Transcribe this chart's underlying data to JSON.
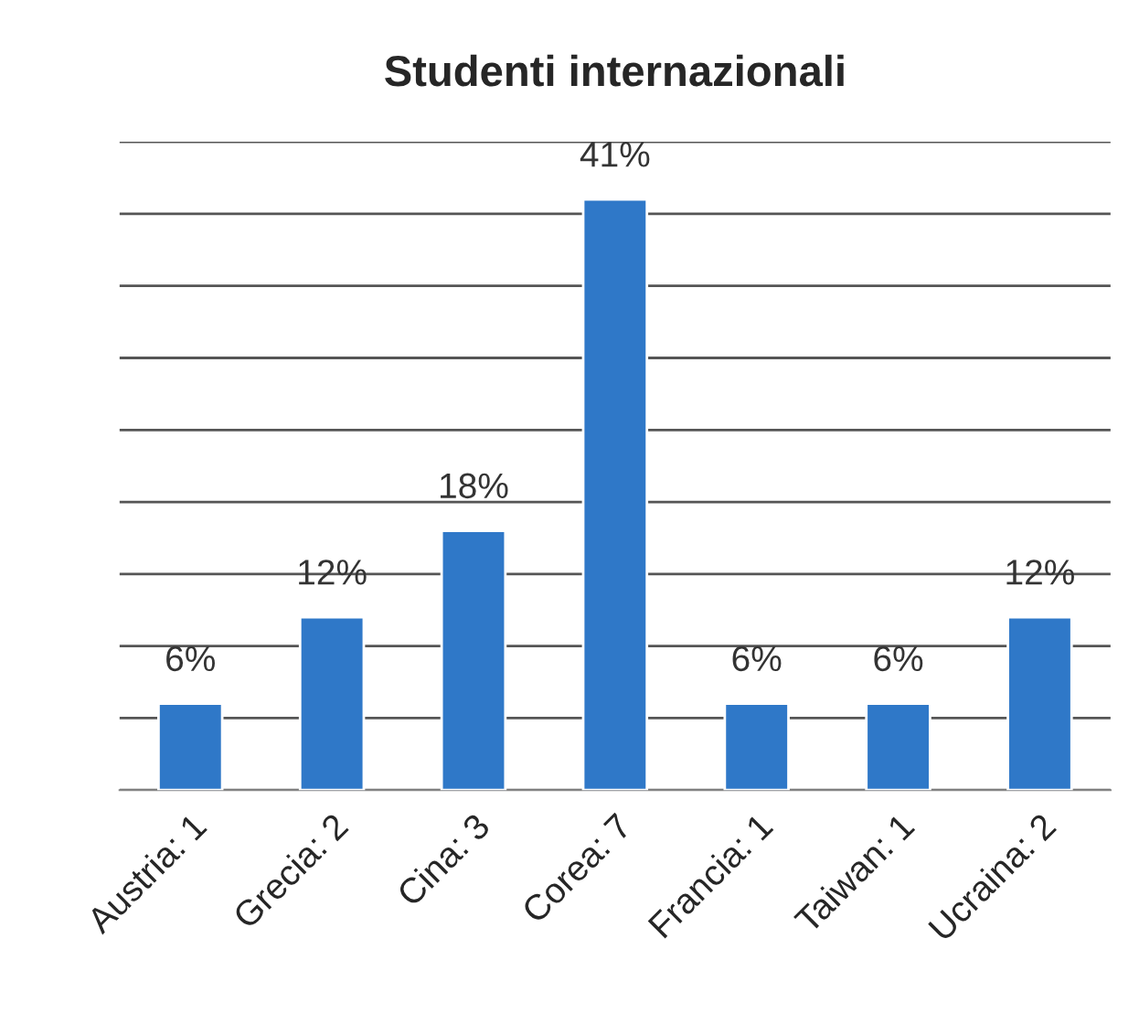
{
  "chart_data": {
    "type": "bar",
    "title": "Studenti internazionali",
    "categories": [
      "Austria: 1",
      "Grecia: 2",
      "Cina: 3",
      "Corea: 7",
      "Francia: 1",
      "Taiwan: 1",
      "Ucraina: 2"
    ],
    "values": [
      6,
      12,
      18,
      41,
      6,
      6,
      12
    ],
    "value_labels": [
      "6%",
      "12%",
      "18%",
      "41%",
      "6%",
      "6%",
      "12%"
    ],
    "color": "#2f78c8",
    "ylim": [
      0,
      45
    ],
    "yticks": [
      {
        "value": 0,
        "label": null
      },
      {
        "value": 5,
        "label": null
      },
      {
        "value": 10,
        "label": null
      },
      {
        "value": 15,
        "label": null
      },
      {
        "value": 20,
        "label": null
      },
      {
        "value": 25,
        "label": null
      },
      {
        "value": 30,
        "label": null
      },
      {
        "value": 35,
        "label": null
      },
      {
        "value": 40,
        "label": null
      },
      {
        "value": 45,
        "label": null
      }
    ],
    "grid": "y",
    "tick_labels": "x",
    "legend": false
  }
}
